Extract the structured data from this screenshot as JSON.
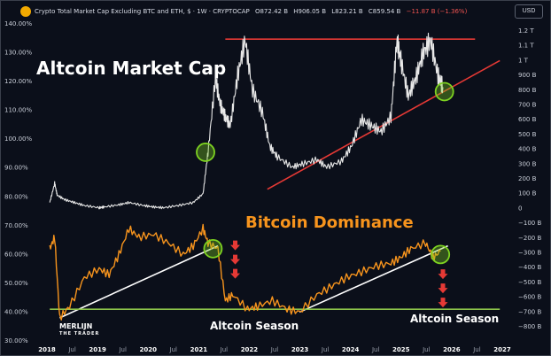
{
  "header": {
    "title": "Crypto Total Market Cap Excluding BTC and ETH, $ · 1W · CRYPTOCAP",
    "open": "O872.42 B",
    "high": "H906.05 B",
    "low": "L823.21 B",
    "close": "C859.54 B",
    "change": "−11.87 B (−1.36%)",
    "currency_button": "USD"
  },
  "annotations": {
    "altcoin_mcap": "Altcoin Market Cap",
    "btc_dominance": "Bitcoin Dominance",
    "altseason_1": "Altcoin Season",
    "altseason_2": "Altcoin Season"
  },
  "logo": {
    "line1": "MERLIJN",
    "line2": "THE TRADER"
  },
  "colors": {
    "background": "#0b0f1a",
    "altcoin_line": "#e8e8e8",
    "dominance_line": "#f7941d",
    "resistance": "#e53935",
    "support_green": "#8bc34a",
    "trend_white": "#ffffff",
    "circle": "#7ed321",
    "arrows": "#e53935"
  },
  "chart_data": {
    "type": "line",
    "x_ticks": [
      "2018",
      "Jul",
      "2019",
      "Jul",
      "2020",
      "Jul",
      "2021",
      "Jul",
      "2022",
      "Jul",
      "2023",
      "Jul",
      "2024",
      "Jul",
      "2025",
      "Jul",
      "2026",
      "Jul",
      "2027"
    ],
    "x_ticks_bold": [
      "2018",
      "2019",
      "2020",
      "2021",
      "2022",
      "2023",
      "2024",
      "2025",
      "2026",
      "2027"
    ],
    "left_axis_ticks": [
      "140.00%",
      "130.00%",
      "120.00%",
      "110.00%",
      "100.00%",
      "90.00%",
      "80.00%",
      "70.00%",
      "60.00%",
      "50.00%",
      "40.00%",
      "30.00%"
    ],
    "right_axis_ticks": [
      "1.2 T",
      "1.1 T",
      "1 T",
      "900 B",
      "800 B",
      "700 B",
      "600 B",
      "500 B",
      "400 B",
      "300 B",
      "200 B",
      "100 B",
      "0",
      "−100 B",
      "−200 B",
      "−300 B",
      "−400 B",
      "−500 B",
      "−600 B",
      "−700 B",
      "−800 B"
    ],
    "series": [
      {
        "name": "Crypto Total Market Cap Excluding BTC and ETH",
        "axis": "right",
        "unit": "B USD",
        "x": [
          2017.9,
          2018.0,
          2018.05,
          2018.2,
          2018.4,
          2018.6,
          2018.9,
          2019.0,
          2019.3,
          2019.5,
          2019.8,
          2020.0,
          2020.2,
          2020.5,
          2020.8,
          2021.0,
          2021.1,
          2021.25,
          2021.35,
          2021.45,
          2021.55,
          2021.7,
          2021.85,
          2022.0,
          2022.2,
          2022.35,
          2022.5,
          2022.8,
          2023.0,
          2023.3,
          2023.5,
          2023.8,
          2024.0,
          2024.2,
          2024.4,
          2024.6,
          2024.8,
          2024.92,
          2025.0,
          2025.15,
          2025.3,
          2025.45,
          2025.6,
          2025.75,
          2025.85
        ],
        "values": [
          40,
          170,
          90,
          60,
          40,
          20,
          5,
          10,
          25,
          40,
          20,
          10,
          5,
          20,
          40,
          100,
          380,
          880,
          700,
          620,
          560,
          900,
          1140,
          800,
          650,
          420,
          350,
          280,
          300,
          330,
          280,
          320,
          420,
          600,
          560,
          520,
          620,
          1140,
          1000,
          760,
          880,
          1050,
          1140,
          900,
          820
        ]
      },
      {
        "name": "Bitcoin Dominance",
        "axis": "left",
        "unit": "%",
        "x": [
          2017.9,
          2018.0,
          2018.1,
          2018.3,
          2018.6,
          2018.9,
          2019.1,
          2019.3,
          2019.5,
          2019.7,
          2020.0,
          2020.3,
          2020.6,
          2020.8,
          2021.0,
          2021.1,
          2021.3,
          2021.45,
          2021.6,
          2021.9,
          2022.1,
          2022.4,
          2022.7,
          2022.95,
          2023.3,
          2023.6,
          2023.9,
          2024.2,
          2024.5,
          2024.8,
          2025.0,
          2025.2,
          2025.5,
          2025.65,
          2025.8
        ],
        "values": [
          62,
          66,
          38,
          42,
          52,
          55,
          53,
          60,
          69,
          66,
          67,
          64,
          60,
          63,
          69,
          64,
          62,
          44,
          46,
          41,
          42,
          44,
          41,
          40,
          46,
          49,
          52,
          54,
          56,
          57,
          59,
          62,
          64,
          59,
          61
        ]
      }
    ],
    "trendlines": [
      {
        "name": "resistance",
        "color": "#e53935",
        "x": [
          2021.45,
          2026.5
        ],
        "y_right": [
          1145,
          1145
        ]
      },
      {
        "name": "altcoin-support",
        "color": "#e53935",
        "x": [
          2022.3,
          2027.0
        ],
        "y_right": [
          130,
          1000
        ]
      },
      {
        "name": "dominance-trend-2018",
        "color": "#ffffff",
        "x": [
          2018.1,
          2021.3
        ],
        "y_left": [
          38,
          63
        ]
      },
      {
        "name": "dominance-trend-2023",
        "color": "#ffffff",
        "x": [
          2022.95,
          2025.95
        ],
        "y_left": [
          40,
          63
        ]
      },
      {
        "name": "dominance-floor",
        "color": "#8bc34a",
        "x": [
          2017.9,
          2027.0
        ],
        "y_left": [
          41,
          41
        ]
      }
    ],
    "circles": [
      {
        "axis": "right",
        "x": 2021.05,
        "y": 380
      },
      {
        "axis": "right",
        "x": 2025.88,
        "y": 790
      },
      {
        "axis": "left",
        "x": 2021.2,
        "y": 62
      },
      {
        "axis": "left",
        "x": 2025.8,
        "y": 60
      }
    ],
    "arrows": [
      {
        "x": 2021.65,
        "y_start": 63,
        "count": 3
      },
      {
        "x": 2025.85,
        "y_start": 53,
        "count": 3
      }
    ],
    "xlim": [
      2017.7,
      2027.05
    ],
    "left_ylim": [
      30,
      140
    ],
    "right_ylim": [
      -800,
      1200
    ],
    "grid": false
  }
}
